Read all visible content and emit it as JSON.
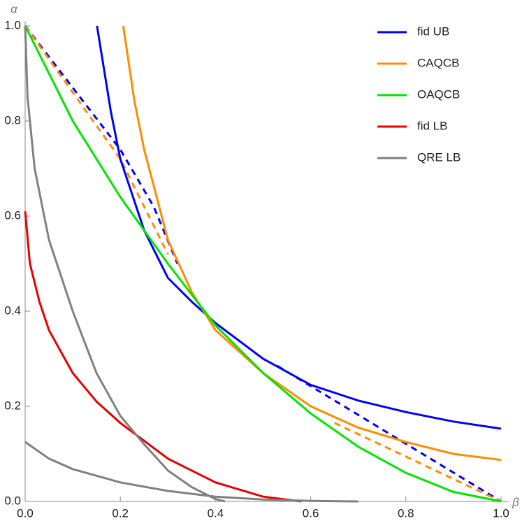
{
  "chart_data": {
    "type": "line",
    "x_label": "β",
    "y_label": "α",
    "xlim": [
      0,
      1
    ],
    "ylim": [
      0,
      1
    ],
    "xticks": [
      {
        "value": 0,
        "label": "0.0"
      },
      0.2,
      0.4,
      0.6,
      0.8,
      {
        "value": 1,
        "label": "1.0"
      }
    ],
    "yticks": [
      {
        "value": 0,
        "label": "0.0"
      },
      0.2,
      0.4,
      0.6,
      0.8,
      {
        "value": 1,
        "label": "1.0"
      }
    ],
    "series": [
      {
        "name": "fid UB",
        "color": "#0000ff",
        "x": [
          0.151,
          0.18,
          0.2,
          0.25,
          0.3,
          0.35,
          0.4,
          0.5,
          0.6,
          0.7,
          0.8,
          0.9,
          1.0
        ],
        "values": [
          1,
          0.82,
          0.72,
          0.57,
          0.47,
          0.42,
          0.375,
          0.3,
          0.245,
          0.212,
          0.188,
          0.168,
          0.153
        ],
        "dashed": {
          "x": [
            0,
            0.1,
            0.2,
            0.27,
            0.32,
            null,
            0.53,
            1.0
          ],
          "values": [
            1,
            0.87,
            0.74,
            0.62,
            0.5,
            null,
            0.285,
            0
          ]
        }
      },
      {
        "name": "CAQCB",
        "color": "#ff8c00",
        "x": [
          0.206,
          0.23,
          0.25,
          0.3,
          0.35,
          0.4,
          0.5,
          0.6,
          0.7,
          0.8,
          0.9,
          1.0
        ],
        "values": [
          1,
          0.84,
          0.74,
          0.55,
          0.44,
          0.36,
          0.27,
          0.2,
          0.155,
          0.125,
          0.1,
          0.087
        ],
        "dashed": {
          "x": [
            0,
            0.1,
            0.2,
            0.3,
            null,
            0.65,
            1.0
          ],
          "values": [
            1,
            0.86,
            0.72,
            0.52,
            null,
            0.165,
            0
          ]
        }
      },
      {
        "name": "OAQCB",
        "color": "#00e600",
        "x": [
          0,
          0.05,
          0.1,
          0.2,
          0.3,
          0.4,
          0.5,
          0.6,
          0.7,
          0.8,
          0.9,
          1.0
        ],
        "values": [
          1,
          0.9,
          0.8,
          0.64,
          0.5,
          0.37,
          0.27,
          0.185,
          0.115,
          0.06,
          0.02,
          0
        ]
      },
      {
        "name": "fid LB",
        "color": "#e60000",
        "x": [
          0,
          0.01,
          0.03,
          0.05,
          0.1,
          0.15,
          0.2,
          0.3,
          0.4,
          0.5,
          0.58
        ],
        "values": [
          0.61,
          0.5,
          0.42,
          0.36,
          0.27,
          0.21,
          0.165,
          0.09,
          0.04,
          0.01,
          0
        ]
      },
      {
        "name": "QRE LB",
        "color": "#808080",
        "x": [
          0,
          0.005,
          0.02,
          0.05,
          0.1,
          0.15,
          0.2,
          0.25,
          0.3,
          0.35,
          0.4,
          0.42,
          null,
          0,
          0.05,
          0.1,
          0.2,
          0.3,
          0.4,
          0.5,
          0.6,
          0.7
        ],
        "values": [
          1,
          0.85,
          0.7,
          0.55,
          0.4,
          0.27,
          0.18,
          0.12,
          0.065,
          0.03,
          0.005,
          0,
          null,
          0.125,
          0.09,
          0.068,
          0.04,
          0.022,
          0.01,
          0.004,
          0.001,
          0
        ]
      }
    ]
  }
}
